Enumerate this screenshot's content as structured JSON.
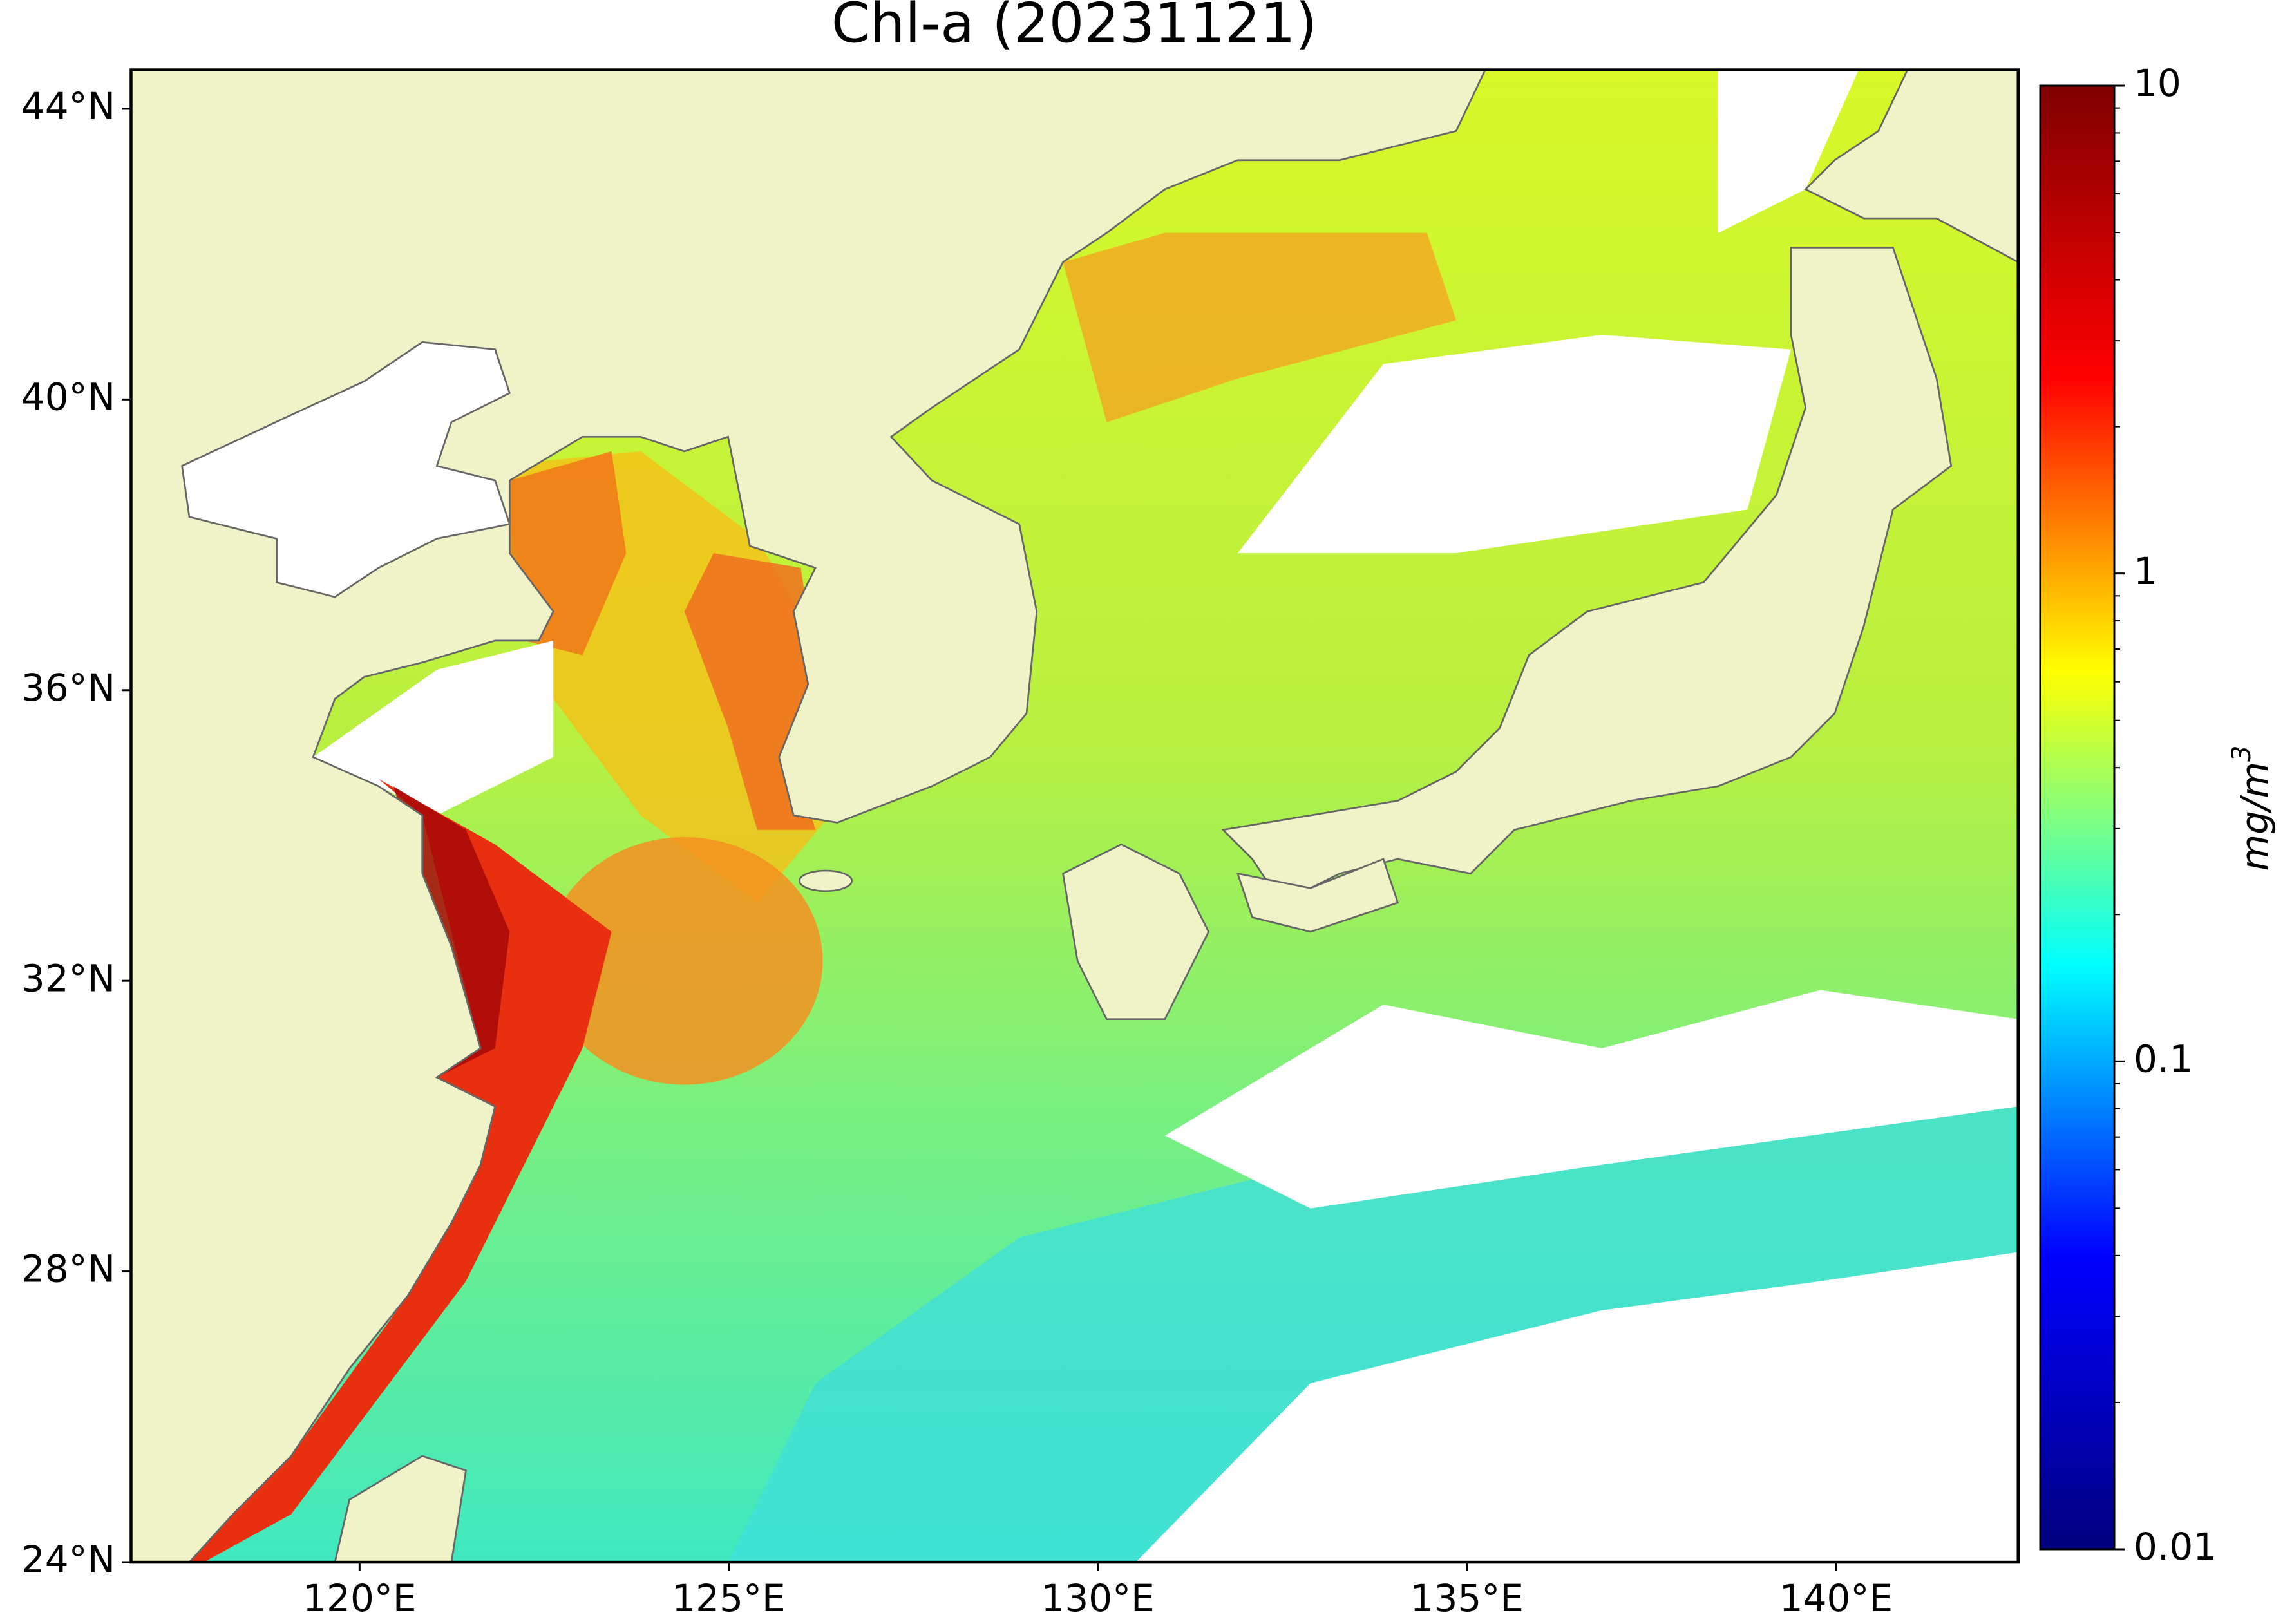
{
  "map": {
    "title": "Chl-a (20231121)",
    "xlim": [
      116.9,
      142.47
    ],
    "ylim": [
      24,
      44.54
    ],
    "xticks": [
      {
        "value": 120,
        "label": "120°E"
      },
      {
        "value": 125,
        "label": "125°E"
      },
      {
        "value": 130,
        "label": "130°E"
      },
      {
        "value": 135,
        "label": "135°E"
      },
      {
        "value": 140,
        "label": "140°E"
      }
    ],
    "yticks": [
      {
        "value": 24,
        "label": "24°N"
      },
      {
        "value": 28,
        "label": "28°N"
      },
      {
        "value": 32,
        "label": "32°N"
      },
      {
        "value": 36,
        "label": "36°N"
      },
      {
        "value": 40,
        "label": "40°N"
      },
      {
        "value": 44,
        "label": "44°N"
      }
    ],
    "colorbar": {
      "lim": [
        0.01,
        10
      ],
      "scale": "log",
      "colormap": [
        "#00007f",
        "#0000ff",
        "#00ffff",
        "#ffff00",
        "#ff0000",
        "#7f0000"
      ],
      "ticks": [
        0.01,
        0.1,
        1,
        10
      ],
      "minor_ticks": [
        0.02,
        0.03,
        0.04,
        0.05,
        0.06,
        0.07,
        0.08,
        0.09,
        0.2,
        0.3,
        0.4,
        0.5,
        0.6,
        0.7,
        0.8,
        0.9,
        2,
        3,
        4,
        5,
        6,
        7,
        8,
        9
      ],
      "label": {
        "base": "mg/m",
        "sup": "3"
      }
    }
  }
}
